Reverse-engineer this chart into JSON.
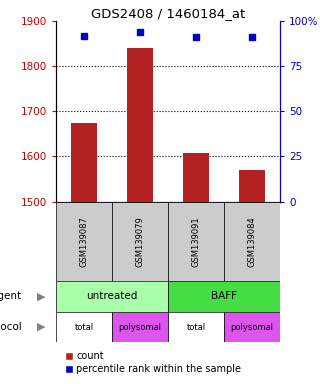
{
  "title": "GDS2408 / 1460184_at",
  "samples": [
    "GSM139087",
    "GSM139079",
    "GSM139091",
    "GSM139084"
  ],
  "bar_values": [
    1675,
    1840,
    1607,
    1570
  ],
  "bar_bottom": 1500,
  "blue_values": [
    92,
    94,
    91,
    91
  ],
  "ylim_left": [
    1500,
    1900
  ],
  "yticks_left": [
    1500,
    1600,
    1700,
    1800,
    1900
  ],
  "ylim_right": [
    0,
    100
  ],
  "yticks_right": [
    0,
    25,
    50,
    75,
    100
  ],
  "yticklabels_right": [
    "0",
    "25",
    "50",
    "75",
    "100%"
  ],
  "bar_color": "#B22222",
  "blue_color": "#0000CC",
  "label_color_left": "#CC0000",
  "label_color_right": "#0000CC",
  "sample_box_color": "#CCCCCC",
  "agent_untreated_color": "#AAFFAA",
  "agent_baff_color": "#44DD44",
  "proto_total_color": "#FFFFFF",
  "proto_poly_color": "#DD55EE",
  "legend_count_color": "#B22222",
  "legend_pct_color": "#0000CC",
  "gridline_ticks": [
    1600,
    1700,
    1800
  ]
}
